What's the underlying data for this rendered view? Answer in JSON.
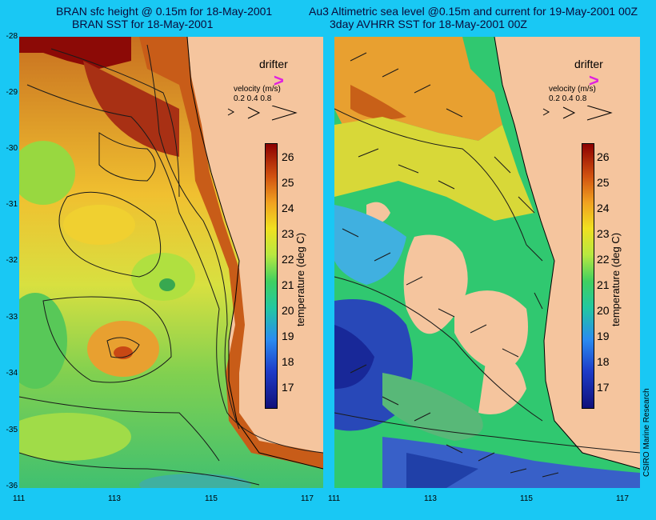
{
  "titles": {
    "left_line1": "BRAN sfc height @ 0.15m for 18-May-2001",
    "left_line2": "BRAN SST for 18-May-2001",
    "right_line1": "Au3 Altimetric sea level  @0.15m and current for 19-May-2001 00Z",
    "right_line2": "3day AVHRR SST for 18-May-2001 00Z"
  },
  "legend": {
    "drifter_label": "drifter",
    "drifter_symbol": ">",
    "velocity_label": "velocity (m/s)",
    "velocity_values": "0.2 0.4 0.8"
  },
  "colorbar": {
    "label": "temperature (deg C)",
    "ticks": [
      "26",
      "25",
      "24",
      "23",
      "22",
      "21",
      "20",
      "19",
      "18",
      "17"
    ]
  },
  "axes": {
    "latitudes": [
      "-28",
      "-29",
      "-30",
      "-31",
      "-32",
      "-33",
      "-34",
      "-35",
      "-36"
    ],
    "longitudes": [
      "111",
      "113",
      "115",
      "117"
    ]
  },
  "credit": "CSIRO Marine Research",
  "colors": {
    "background": "#19c8f4",
    "land": "#f5c59e",
    "drifter": "#e020e0"
  }
}
